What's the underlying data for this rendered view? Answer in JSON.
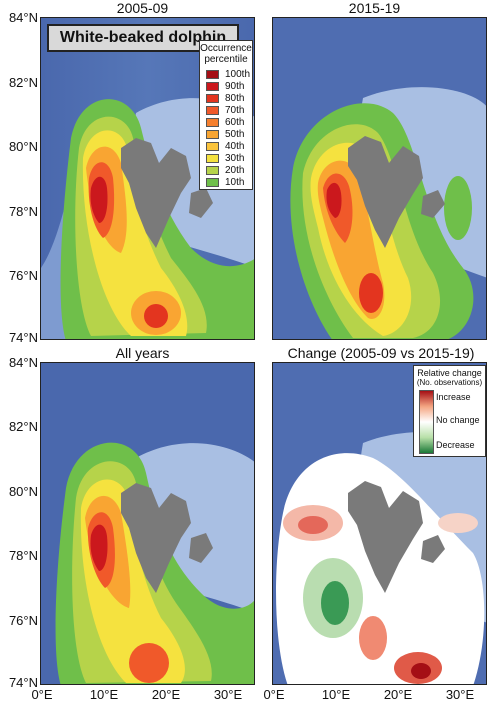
{
  "panels": {
    "p1_title": "2005-09",
    "p2_title": "2015-19",
    "p3_title": "All years",
    "p4_title": "Change (2005-09 vs 2015-19)"
  },
  "species": "White-beaked dolphin",
  "y_ticks": [
    "84°N",
    "82°N",
    "80°N",
    "78°N",
    "76°N",
    "74°N"
  ],
  "x_ticks": [
    "0°E",
    "10°E",
    "20°E",
    "30°E"
  ],
  "occurrence_legend": {
    "title_line1": "Occurrence",
    "title_line2": "percentile",
    "items": [
      {
        "label": "100th",
        "color": "#a50f15"
      },
      {
        "label": "90th",
        "color": "#cb181d"
      },
      {
        "label": "80th",
        "color": "#e3351f"
      },
      {
        "label": "70th",
        "color": "#f0592a"
      },
      {
        "label": "60th",
        "color": "#f57f2e"
      },
      {
        "label": "50th",
        "color": "#f9a532"
      },
      {
        "label": "40th",
        "color": "#fbc43c"
      },
      {
        "label": "30th",
        "color": "#f5e23f"
      },
      {
        "label": "20th",
        "color": "#b6d34a"
      },
      {
        "label": "10th",
        "color": "#6fbf4a"
      }
    ]
  },
  "change_legend": {
    "title": "Relative change",
    "subtitle": "(No. observations)",
    "increase": "Increase",
    "no_change": "No change",
    "decrease": "Decrease"
  },
  "colors": {
    "ocean_deep": "#4d6fb3",
    "ocean_mid": "#6d8cc5",
    "shelf": "#a9bfe3",
    "land": "#7a7a7a"
  }
}
